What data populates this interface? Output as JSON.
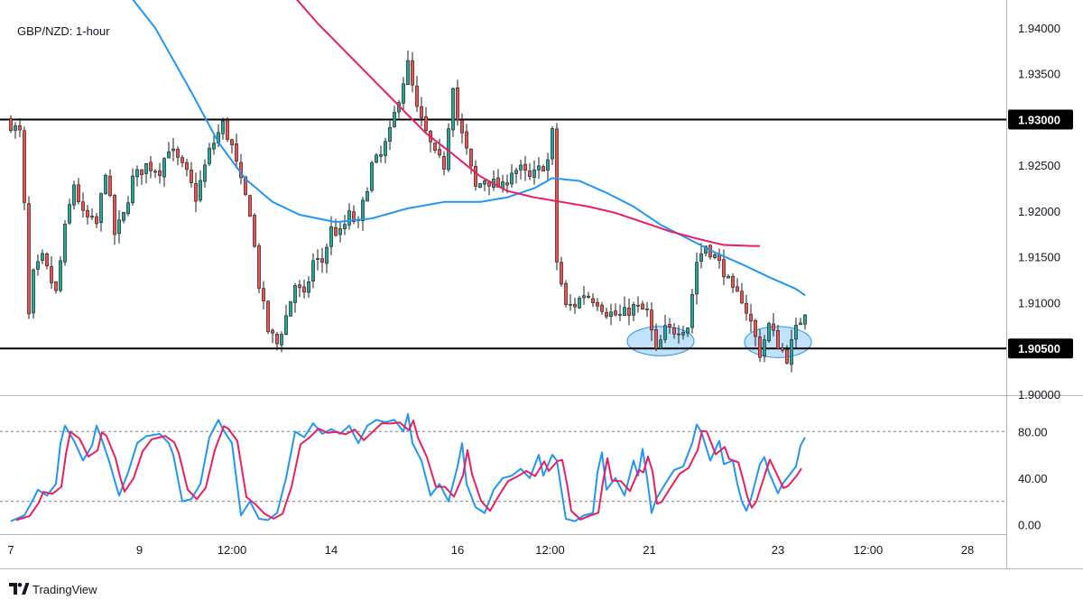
{
  "chart_data": {
    "type": "candlestick",
    "title": "GBP/NZD: 1-hour",
    "price_axis": {
      "ylim": [
        1.9,
        1.943
      ],
      "ticks": [
        "1.90000",
        "1.90500",
        "1.91000",
        "1.91500",
        "1.92000",
        "1.92500",
        "1.93000",
        "1.93500",
        "1.94000"
      ]
    },
    "time_axis": {
      "ticks": [
        {
          "label": "7",
          "t": 0
        },
        {
          "label": "9",
          "t": 28.5
        },
        {
          "label": "12:00",
          "t": 49
        },
        {
          "label": "14",
          "t": 71
        },
        {
          "label": "16",
          "t": 99
        },
        {
          "label": "12:00",
          "t": 119.5
        },
        {
          "label": "21",
          "t": 141.5
        },
        {
          "label": "23",
          "t": 170
        },
        {
          "label": "12:00",
          "t": 190
        },
        {
          "label": "28",
          "t": 212
        }
      ]
    },
    "horizontal_levels": [
      {
        "label": "1.93000",
        "value": 1.93
      },
      {
        "label": "1.90500",
        "value": 1.905
      }
    ],
    "highlight_zones": [
      {
        "t": 144,
        "value": 1.9058,
        "dt": 14,
        "dv": 0.0032
      },
      {
        "t": 170,
        "value": 1.9057,
        "dt": 14,
        "dv": 0.0034
      }
    ],
    "close_anchors": [
      [
        0,
        1.9295
      ],
      [
        2,
        1.9285
      ],
      [
        3,
        1.9205
      ],
      [
        4,
        1.9085
      ],
      [
        5,
        1.913
      ],
      [
        7,
        1.9148
      ],
      [
        10,
        1.911
      ],
      [
        12,
        1.918
      ],
      [
        14,
        1.923
      ],
      [
        16,
        1.9195
      ],
      [
        19,
        1.9185
      ],
      [
        21,
        1.9245
      ],
      [
        23,
        1.9175
      ],
      [
        25,
        1.9195
      ],
      [
        27,
        1.9235
      ],
      [
        30,
        1.925
      ],
      [
        33,
        1.9245
      ],
      [
        35,
        1.927
      ],
      [
        37,
        1.9255
      ],
      [
        39,
        1.924
      ],
      [
        41,
        1.9215
      ],
      [
        44,
        1.9265
      ],
      [
        47,
        1.9295
      ],
      [
        49,
        1.927
      ],
      [
        51,
        1.923
      ],
      [
        53,
        1.92
      ],
      [
        55,
        1.912
      ],
      [
        57,
        1.907
      ],
      [
        59,
        1.9055
      ],
      [
        61,
        1.9085
      ],
      [
        63,
        1.912
      ],
      [
        65,
        1.9105
      ],
      [
        67,
        1.9145
      ],
      [
        69,
        1.9145
      ],
      [
        71,
        1.918
      ],
      [
        73,
        1.9175
      ],
      [
        75,
        1.9195
      ],
      [
        77,
        1.9185
      ],
      [
        80,
        1.925
      ],
      [
        82,
        1.926
      ],
      [
        84,
        1.9285
      ],
      [
        86,
        1.9325
      ],
      [
        88,
        1.936
      ],
      [
        90,
        1.931
      ],
      [
        92,
        1.9285
      ],
      [
        94,
        1.926
      ],
      [
        96,
        1.925
      ],
      [
        98,
        1.934
      ],
      [
        99,
        1.93
      ],
      [
        101,
        1.9265
      ],
      [
        103,
        1.9225
      ],
      [
        105,
        1.9235
      ],
      [
        107,
        1.923
      ],
      [
        109,
        1.9225
      ],
      [
        111,
        1.9245
      ],
      [
        113,
        1.9245
      ],
      [
        115,
        1.9235
      ],
      [
        117,
        1.9245
      ],
      [
        119,
        1.9255
      ],
      [
        120,
        1.9285
      ],
      [
        121,
        1.9145
      ],
      [
        123,
        1.9095
      ],
      [
        125,
        1.9098
      ],
      [
        127,
        1.911
      ],
      [
        130,
        1.9102
      ],
      [
        132,
        1.909
      ],
      [
        135,
        1.9085
      ],
      [
        138,
        1.9095
      ],
      [
        141,
        1.909
      ],
      [
        143,
        1.9045
      ],
      [
        145,
        1.907
      ],
      [
        147,
        1.907
      ],
      [
        150,
        1.9075
      ],
      [
        152,
        1.9145
      ],
      [
        154,
        1.9163
      ],
      [
        156,
        1.915
      ],
      [
        158,
        1.9135
      ],
      [
        160,
        1.911
      ],
      [
        162,
        1.9105
      ],
      [
        164,
        1.9078
      ],
      [
        166,
        1.9045
      ],
      [
        168,
        1.9075
      ],
      [
        170,
        1.9055
      ],
      [
        172,
        1.904
      ],
      [
        174,
        1.907
      ],
      [
        176,
        1.9092
      ]
    ],
    "sma_blue_anchors": [
      [
        24,
        1.945
      ],
      [
        32,
        1.94
      ],
      [
        40,
        1.933
      ],
      [
        46,
        1.9275
      ],
      [
        52,
        1.9235
      ],
      [
        58,
        1.921
      ],
      [
        64,
        1.9196
      ],
      [
        72,
        1.9188
      ],
      [
        80,
        1.9192
      ],
      [
        88,
        1.9203
      ],
      [
        96,
        1.921
      ],
      [
        104,
        1.921
      ],
      [
        110,
        1.9215
      ],
      [
        116,
        1.9225
      ],
      [
        120,
        1.9236
      ],
      [
        126,
        1.9233
      ],
      [
        132,
        1.922
      ],
      [
        138,
        1.9205
      ],
      [
        144,
        1.9185
      ],
      [
        150,
        1.917
      ],
      [
        156,
        1.9155
      ],
      [
        162,
        1.9142
      ],
      [
        168,
        1.9128
      ],
      [
        174,
        1.9115
      ],
      [
        176,
        1.9108
      ]
    ],
    "sma_pink_anchors": [
      [
        60,
        1.945
      ],
      [
        68,
        1.9405
      ],
      [
        76,
        1.9365
      ],
      [
        84,
        1.9325
      ],
      [
        92,
        1.9285
      ],
      [
        98,
        1.9262
      ],
      [
        104,
        1.9238
      ],
      [
        110,
        1.9222
      ],
      [
        116,
        1.9215
      ],
      [
        122,
        1.921
      ],
      [
        128,
        1.9205
      ],
      [
        134,
        1.9198
      ],
      [
        140,
        1.9188
      ],
      [
        146,
        1.9178
      ],
      [
        152,
        1.917
      ],
      [
        158,
        1.9163
      ],
      [
        164,
        1.9162
      ],
      [
        166,
        1.9162
      ]
    ],
    "stochastic": {
      "ylim": [
        -5,
        105
      ],
      "ticks": [
        "0.00",
        "40.00",
        "80.00"
      ],
      "overbought": 80,
      "oversold": 20,
      "k_anchors": [
        [
          0,
          3
        ],
        [
          3,
          8
        ],
        [
          5,
          22
        ],
        [
          6,
          30
        ],
        [
          8,
          25
        ],
        [
          10,
          35
        ],
        [
          11,
          70
        ],
        [
          12,
          85
        ],
        [
          14,
          72
        ],
        [
          16,
          55
        ],
        [
          18,
          68
        ],
        [
          19,
          85
        ],
        [
          20,
          75
        ],
        [
          22,
          52
        ],
        [
          23,
          38
        ],
        [
          24,
          25
        ],
        [
          26,
          45
        ],
        [
          28,
          70
        ],
        [
          30,
          76
        ],
        [
          33,
          78
        ],
        [
          35,
          70
        ],
        [
          36,
          60
        ],
        [
          38,
          20
        ],
        [
          40,
          22
        ],
        [
          42,
          35
        ],
        [
          44,
          75
        ],
        [
          46,
          90
        ],
        [
          47,
          82
        ],
        [
          49,
          70
        ],
        [
          51,
          8
        ],
        [
          53,
          20
        ],
        [
          55,
          5
        ],
        [
          57,
          4
        ],
        [
          59,
          10
        ],
        [
          61,
          40
        ],
        [
          63,
          80
        ],
        [
          65,
          75
        ],
        [
          67,
          87
        ],
        [
          69,
          78
        ],
        [
          71,
          82
        ],
        [
          73,
          78
        ],
        [
          75,
          85
        ],
        [
          77,
          70
        ],
        [
          79,
          85
        ],
        [
          81,
          90
        ],
        [
          83,
          88
        ],
        [
          85,
          90
        ],
        [
          87,
          80
        ],
        [
          88,
          95
        ],
        [
          89,
          70
        ],
        [
          91,
          55
        ],
        [
          93,
          25
        ],
        [
          95,
          35
        ],
        [
          97,
          20
        ],
        [
          99,
          50
        ],
        [
          100,
          70
        ],
        [
          101,
          35
        ],
        [
          103,
          15
        ],
        [
          105,
          10
        ],
        [
          107,
          30
        ],
        [
          109,
          40
        ],
        [
          111,
          42
        ],
        [
          113,
          48
        ],
        [
          115,
          40
        ],
        [
          117,
          60
        ],
        [
          118,
          42
        ],
        [
          120,
          60
        ],
        [
          121,
          55
        ],
        [
          122,
          30
        ],
        [
          123,
          5
        ],
        [
          125,
          3
        ],
        [
          127,
          8
        ],
        [
          129,
          10
        ],
        [
          130,
          45
        ],
        [
          131,
          62
        ],
        [
          132,
          30
        ],
        [
          134,
          40
        ],
        [
          136,
          25
        ],
        [
          138,
          55
        ],
        [
          139,
          42
        ],
        [
          140,
          65
        ],
        [
          141,
          40
        ],
        [
          142,
          10
        ],
        [
          143,
          22
        ],
        [
          145,
          35
        ],
        [
          147,
          47
        ],
        [
          149,
          50
        ],
        [
          151,
          70
        ],
        [
          152,
          86
        ],
        [
          153,
          80
        ],
        [
          155,
          55
        ],
        [
          157,
          72
        ],
        [
          158,
          52
        ],
        [
          160,
          55
        ],
        [
          161,
          35
        ],
        [
          162,
          20
        ],
        [
          163,
          12
        ],
        [
          164,
          22
        ],
        [
          166,
          52
        ],
        [
          167,
          58
        ],
        [
          168,
          45
        ],
        [
          170,
          27
        ],
        [
          171,
          35
        ],
        [
          173,
          45
        ],
        [
          174,
          50
        ],
        [
          175,
          68
        ],
        [
          176,
          75
        ]
      ],
      "d_lag": 1.2
    },
    "candle_count": 177
  },
  "footer": {
    "brand": "TradingView"
  },
  "colors": {
    "bull": "#26a69a",
    "bear": "#ef5350",
    "candle_outline": "#1e1e1e",
    "sma_blue": "#2196f3",
    "sma_pink": "#e91e63",
    "level_line": "#000000",
    "zone_fill": "#90caf9"
  }
}
